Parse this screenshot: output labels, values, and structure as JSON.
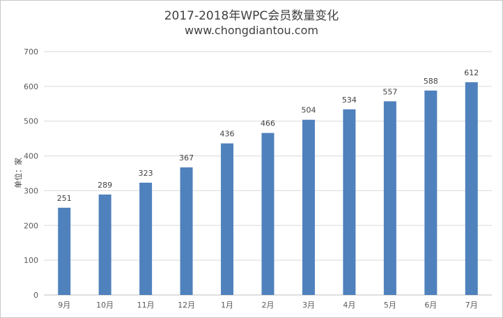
{
  "chart_data": {
    "type": "bar",
    "title": "2017-2018年WPC会员数量变化",
    "subtitle": "www.chongdiantou.com",
    "xlabel": "",
    "ylabel": "单位：家",
    "categories": [
      "9月",
      "10月",
      "11月",
      "12月",
      "1月",
      "2月",
      "3月",
      "4月",
      "5月",
      "6月",
      "7月"
    ],
    "values": [
      251,
      289,
      323,
      367,
      436,
      466,
      504,
      534,
      557,
      588,
      612
    ],
    "yticks": [
      "0",
      "100",
      "200",
      "300",
      "400",
      "500",
      "600",
      "700"
    ],
    "ylim": [
      0,
      700
    ],
    "grid": true,
    "legend": "none",
    "bar_color": "#4f81bd"
  }
}
